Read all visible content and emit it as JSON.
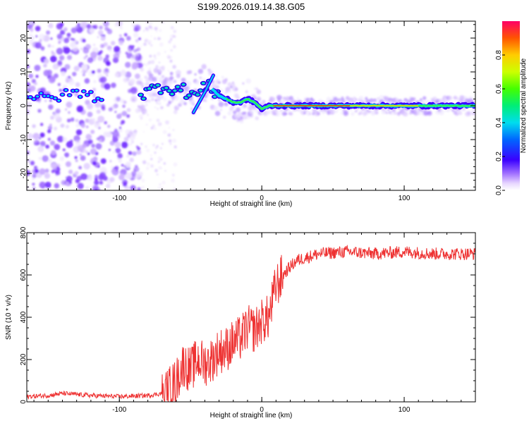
{
  "title": "S199.2026.019.14.38.G05",
  "chart_data": [
    {
      "type": "heatmap",
      "xlabel": "Height of straight line (km)",
      "ylabel": "Frequency (Hz)",
      "xlim": [
        -165,
        150
      ],
      "ylim": [
        -25,
        25
      ],
      "xticks": [
        -100,
        0,
        100
      ],
      "yticks": [
        -20,
        -10,
        0,
        10,
        20
      ],
      "colorbar": {
        "label": "Normalized spectral amplitude",
        "range": [
          0,
          1
        ],
        "ticks": [
          0.0,
          0.2,
          0.4,
          0.6,
          0.8
        ]
      },
      "ridge": {
        "x": [
          -165,
          -150,
          -140,
          -130,
          -120,
          -110,
          -100,
          -90,
          -80,
          -70,
          -60,
          -50,
          -45,
          -40,
          -35,
          -30,
          -25,
          -20,
          -15,
          -10,
          -5,
          0,
          5,
          10,
          20,
          40,
          60,
          80,
          100,
          120,
          150
        ],
        "y": [
          3,
          2,
          3,
          4,
          3,
          2,
          4,
          3,
          4,
          6,
          5,
          4,
          3,
          6,
          5,
          3,
          2,
          1,
          1,
          2,
          1,
          -1,
          0,
          0,
          0,
          0,
          0,
          0,
          0,
          0,
          0
        ]
      }
    },
    {
      "type": "line",
      "xlabel": "Height of straight line (km)",
      "ylabel": "SNR (10 * v/v)",
      "xlim": [
        -165,
        150
      ],
      "ylim": [
        0,
        800
      ],
      "xticks": [
        -100,
        0,
        100
      ],
      "yticks": [
        0,
        200,
        400,
        600,
        800
      ],
      "series": [
        {
          "name": "SNR",
          "color": "#ee3333",
          "x": [
            -165,
            -150,
            -140,
            -120,
            -100,
            -80,
            -70,
            -65,
            -60,
            -55,
            -50,
            -45,
            -40,
            -35,
            -30,
            -25,
            -20,
            -15,
            -10,
            -5,
            0,
            5,
            10,
            15,
            20,
            25,
            30,
            40,
            60,
            80,
            100,
            120,
            150
          ],
          "y": [
            25,
            30,
            40,
            30,
            25,
            30,
            40,
            60,
            100,
            180,
            150,
            200,
            180,
            200,
            240,
            250,
            280,
            300,
            350,
            340,
            380,
            400,
            550,
            600,
            640,
            670,
            680,
            700,
            710,
            700,
            710,
            700,
            700
          ]
        }
      ]
    }
  ]
}
